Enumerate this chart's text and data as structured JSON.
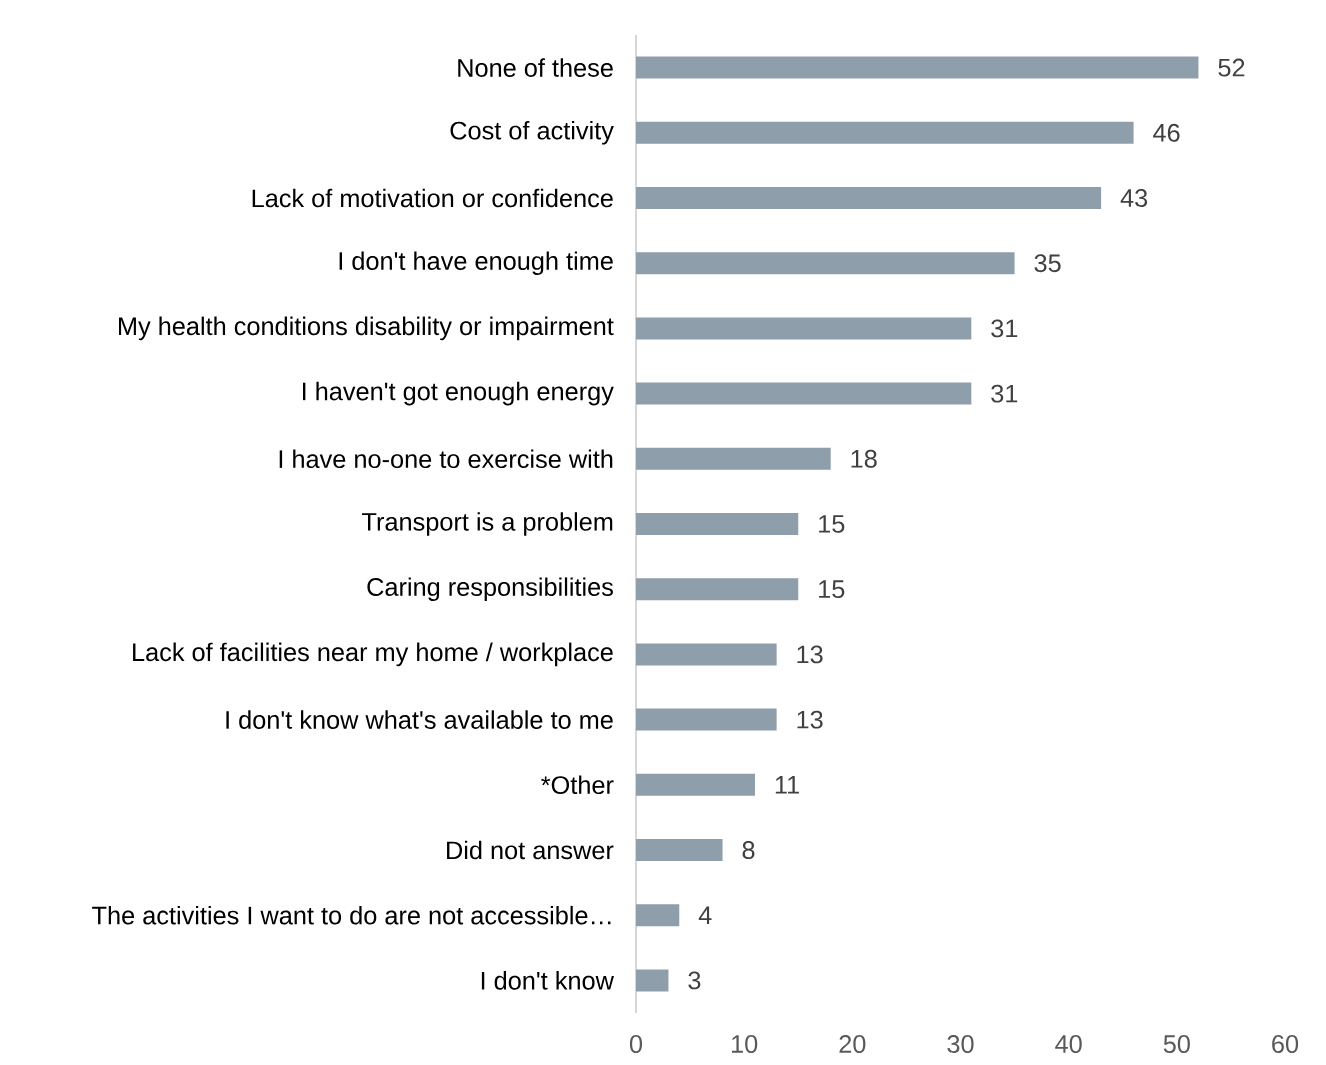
{
  "chart_data": {
    "type": "bar",
    "orientation": "horizontal",
    "categories": [
      "None of these",
      "Cost of activity",
      "Lack of motivation or confidence",
      "I don't have enough time",
      "My health conditions disability or impairment",
      "I haven't got enough energy",
      "I have no-one to exercise with",
      "Transport is a problem",
      "Caring responsibilities",
      "Lack of facilities near my home / workplace",
      "I don't know what's available to me",
      "*Other",
      "Did not answer",
      "The activities I want to do are not accessible…",
      "I don't know"
    ],
    "values": [
      52,
      46,
      43,
      35,
      31,
      31,
      18,
      15,
      15,
      13,
      13,
      11,
      8,
      4,
      3
    ],
    "color": "#8f9eab",
    "xlim": [
      0,
      60
    ],
    "xticks": [
      0,
      10,
      20,
      30,
      40,
      50,
      60
    ],
    "data_labels": true,
    "grid": false
  }
}
